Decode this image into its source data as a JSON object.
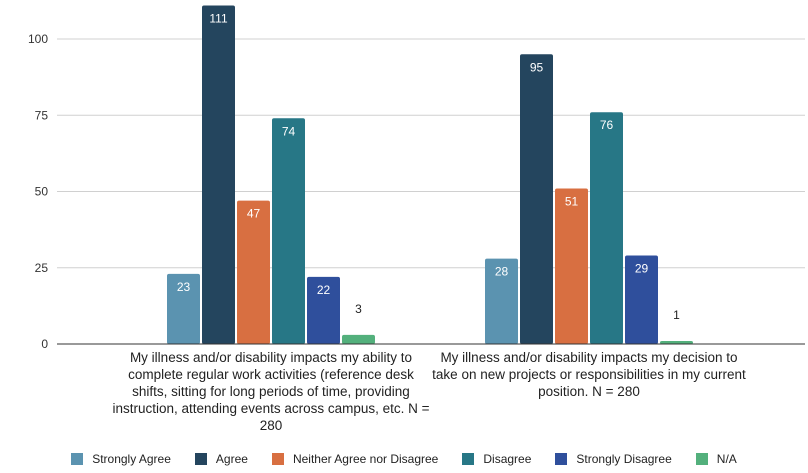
{
  "chart_data": {
    "type": "bar",
    "categories": [
      "My illness and/or disability impacts my ability to complete regular work activities (reference desk shifts, sitting for long periods of time, providing instruction, attending events across campus, etc. N = 280",
      "My illness and/or disability impacts my decision to take on new projects or responsibilities in my current position. N = 280"
    ],
    "series": [
      {
        "name": "Strongly Agree",
        "values": [
          23,
          28
        ],
        "color": "#5b93b0"
      },
      {
        "name": "Agree",
        "values": [
          111,
          95
        ],
        "color": "#24455e"
      },
      {
        "name": "Neither Agree nor Disagree",
        "values": [
          47,
          51
        ],
        "color": "#d86f41"
      },
      {
        "name": "Disagree",
        "values": [
          74,
          76
        ],
        "color": "#277786"
      },
      {
        "name": "Strongly Disagree",
        "values": [
          22,
          29
        ],
        "color": "#2f4f9c"
      },
      {
        "name": "N/A",
        "values": [
          3,
          1
        ],
        "color": "#53b07c"
      }
    ],
    "yticks": [
      0,
      25,
      50,
      75,
      100
    ],
    "ylim": [
      0,
      110
    ],
    "grid": true,
    "legend": "bottom",
    "title": "",
    "xlabel": "",
    "ylabel": ""
  }
}
